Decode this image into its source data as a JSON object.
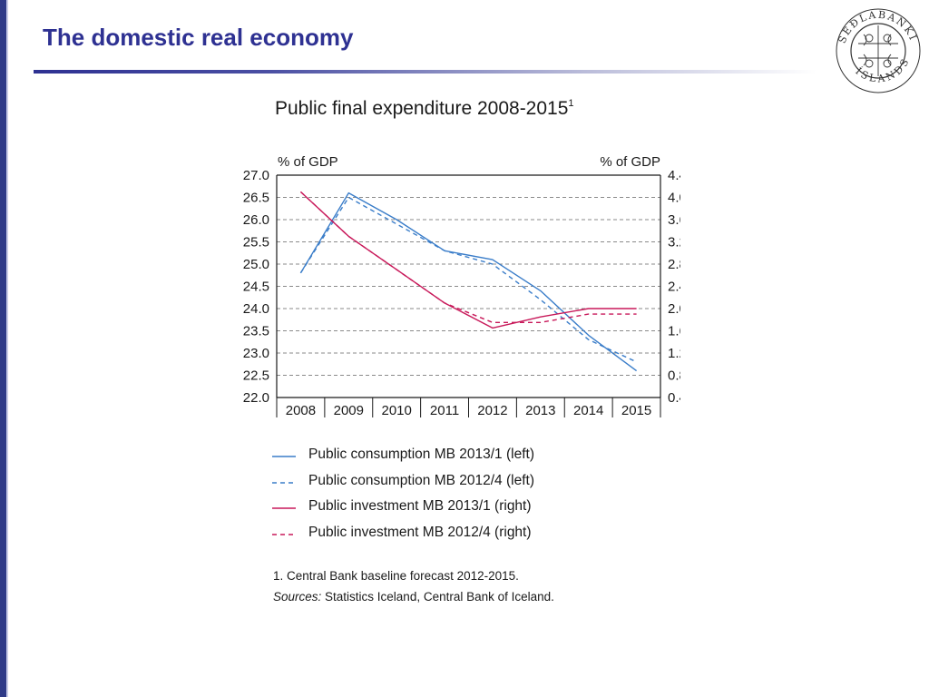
{
  "slide": {
    "title": "The domestic real economy",
    "logo_text_top": "SEÐLABANKI",
    "logo_text_bottom": "ÍSLANDS"
  },
  "colors": {
    "title": "#2e3192",
    "consumption": "#3a7dc9",
    "investment": "#c8195a",
    "grid": "#8a8a8a"
  },
  "chart_data": {
    "type": "line",
    "title": "Public final expenditure 2008-2015",
    "title_superscript": "1",
    "left_axis_label": "% of GDP",
    "right_axis_label": "% of GDP",
    "categories": [
      "2008",
      "2009",
      "2010",
      "2011",
      "2012",
      "2013",
      "2014",
      "2015"
    ],
    "ylim_left": [
      22.0,
      27.0
    ],
    "ylim_right": [
      0.4,
      4.4
    ],
    "left_ticks": [
      "27.0",
      "26.5",
      "26.0",
      "25.5",
      "25.0",
      "24.5",
      "24.0",
      "23.5",
      "23.0",
      "22.5",
      "22.0"
    ],
    "right_ticks": [
      "4.4",
      "4.0",
      "3.6",
      "3.2",
      "2.8",
      "2.4",
      "2.0",
      "1.6",
      "1.2",
      "0.8",
      "0.4"
    ],
    "grid": "horizontal dashed",
    "series": [
      {
        "name": "Public consumption MB 2013/1 (left)",
        "axis": "left",
        "style": "solid",
        "color": "#3a7dc9",
        "values": [
          24.8,
          26.6,
          26.0,
          25.3,
          25.1,
          24.4,
          23.4,
          22.6
        ]
      },
      {
        "name": "Public consumption MB 2012/4 (left)",
        "axis": "left",
        "style": "dashed",
        "color": "#3a7dc9",
        "values": [
          24.8,
          26.5,
          25.9,
          25.3,
          25.0,
          24.2,
          23.3,
          22.8
        ]
      },
      {
        "name": "Public investment MB 2013/1 (right)",
        "axis": "right",
        "style": "solid",
        "color": "#c8195a",
        "values": [
          4.1,
          3.3,
          2.7,
          2.1,
          1.65,
          1.85,
          2.0,
          2.0
        ]
      },
      {
        "name": "Public investment MB 2012/4 (right)",
        "axis": "right",
        "style": "dashed",
        "color": "#c8195a",
        "values": [
          4.1,
          3.3,
          2.7,
          2.1,
          1.75,
          1.75,
          1.9,
          1.9
        ]
      }
    ]
  },
  "notes": {
    "footnote": "1. Central Bank baseline forecast 2012-2015.",
    "sources_label": "Sources:",
    "sources_text": " Statistics Iceland, Central Bank of Iceland."
  }
}
